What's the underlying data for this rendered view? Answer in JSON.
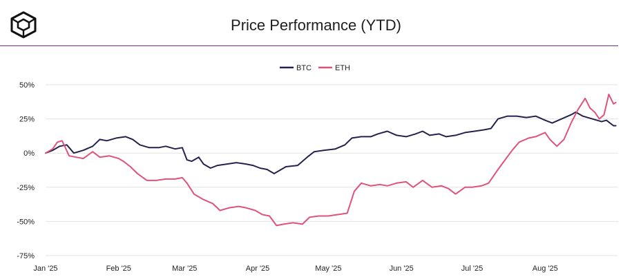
{
  "header": {
    "logo_icon": "cube-logo-icon",
    "title": "Price Performance (YTD)"
  },
  "colors": {
    "btc": "#23214f",
    "eth": "#e0527a",
    "grid": "#e3e3e3",
    "rule": "#7b2e8e"
  },
  "chart_data": {
    "type": "line",
    "title": "Price Performance (YTD)",
    "xlabel": "",
    "ylabel": "",
    "ylim": [
      -75,
      50
    ],
    "yticks": [
      50,
      25,
      0,
      -25,
      -50,
      -75
    ],
    "ytick_labels": [
      "50%",
      "25%",
      "0%",
      "-25%",
      "-50%",
      "-75%"
    ],
    "xlim": [
      "2025-01-01",
      "2025-09-01"
    ],
    "xticks": [
      "2025-01-01",
      "2025-02-01",
      "2025-03-01",
      "2025-04-01",
      "2025-05-01",
      "2025-06-01",
      "2025-07-01",
      "2025-08-01"
    ],
    "xtick_labels": [
      "Jan '25",
      "Feb '25",
      "Mar '25",
      "Apr '25",
      "May '25",
      "Jun '25",
      "Jul '25",
      "Aug '25"
    ],
    "grid": true,
    "legend": "top-center",
    "series": [
      {
        "name": "BTC",
        "color": "#23214f",
        "points": [
          [
            "2025-01-01",
            0
          ],
          [
            "2025-01-04",
            2
          ],
          [
            "2025-01-07",
            5
          ],
          [
            "2025-01-10",
            6
          ],
          [
            "2025-01-13",
            0
          ],
          [
            "2025-01-17",
            2
          ],
          [
            "2025-01-21",
            5
          ],
          [
            "2025-01-24",
            10
          ],
          [
            "2025-01-27",
            9
          ],
          [
            "2025-01-31",
            11
          ],
          [
            "2025-02-04",
            12
          ],
          [
            "2025-02-07",
            10
          ],
          [
            "2025-02-10",
            6
          ],
          [
            "2025-02-14",
            4
          ],
          [
            "2025-02-18",
            4
          ],
          [
            "2025-02-21",
            5
          ],
          [
            "2025-02-25",
            3
          ],
          [
            "2025-02-28",
            4
          ],
          [
            "2025-03-02",
            -5
          ],
          [
            "2025-03-04",
            -6
          ],
          [
            "2025-03-07",
            -3
          ],
          [
            "2025-03-09",
            -8
          ],
          [
            "2025-03-12",
            -11
          ],
          [
            "2025-03-15",
            -9
          ],
          [
            "2025-03-19",
            -8
          ],
          [
            "2025-03-23",
            -7
          ],
          [
            "2025-03-27",
            -8
          ],
          [
            "2025-03-30",
            -9
          ],
          [
            "2025-04-02",
            -11
          ],
          [
            "2025-04-05",
            -12
          ],
          [
            "2025-04-08",
            -15
          ],
          [
            "2025-04-10",
            -13
          ],
          [
            "2025-04-13",
            -10
          ],
          [
            "2025-04-18",
            -9
          ],
          [
            "2025-04-22",
            -3
          ],
          [
            "2025-04-25",
            1
          ],
          [
            "2025-04-29",
            2
          ],
          [
            "2025-05-04",
            3
          ],
          [
            "2025-05-08",
            6
          ],
          [
            "2025-05-11",
            11
          ],
          [
            "2025-05-15",
            12
          ],
          [
            "2025-05-19",
            12
          ],
          [
            "2025-05-22",
            14
          ],
          [
            "2025-05-26",
            16
          ],
          [
            "2025-05-30",
            13
          ],
          [
            "2025-06-03",
            12
          ],
          [
            "2025-06-07",
            14
          ],
          [
            "2025-06-10",
            16
          ],
          [
            "2025-06-13",
            13
          ],
          [
            "2025-06-17",
            14
          ],
          [
            "2025-06-20",
            12
          ],
          [
            "2025-06-24",
            13
          ],
          [
            "2025-06-28",
            15
          ],
          [
            "2025-07-02",
            16
          ],
          [
            "2025-07-06",
            17
          ],
          [
            "2025-07-09",
            18
          ],
          [
            "2025-07-12",
            25
          ],
          [
            "2025-07-16",
            27
          ],
          [
            "2025-07-20",
            27
          ],
          [
            "2025-07-24",
            26
          ],
          [
            "2025-07-28",
            27
          ],
          [
            "2025-08-01",
            24
          ],
          [
            "2025-08-04",
            22
          ],
          [
            "2025-08-08",
            25
          ],
          [
            "2025-08-12",
            28
          ],
          [
            "2025-08-14",
            30
          ],
          [
            "2025-08-17",
            27
          ],
          [
            "2025-08-21",
            25
          ],
          [
            "2025-08-25",
            23
          ],
          [
            "2025-08-27",
            24
          ],
          [
            "2025-08-30",
            20
          ],
          [
            "2025-08-31",
            20
          ]
        ]
      },
      {
        "name": "ETH",
        "color": "#e0527a",
        "points": [
          [
            "2025-01-01",
            0
          ],
          [
            "2025-01-04",
            3
          ],
          [
            "2025-01-06",
            8
          ],
          [
            "2025-01-08",
            9
          ],
          [
            "2025-01-11",
            -2
          ],
          [
            "2025-01-14",
            -3
          ],
          [
            "2025-01-17",
            -4
          ],
          [
            "2025-01-21",
            1
          ],
          [
            "2025-01-24",
            -3
          ],
          [
            "2025-01-28",
            -2
          ],
          [
            "2025-02-01",
            -4
          ],
          [
            "2025-02-03",
            -6
          ],
          [
            "2025-02-06",
            -10
          ],
          [
            "2025-02-09",
            -15
          ],
          [
            "2025-02-13",
            -20
          ],
          [
            "2025-02-17",
            -20
          ],
          [
            "2025-02-21",
            -19
          ],
          [
            "2025-02-25",
            -19
          ],
          [
            "2025-02-28",
            -18
          ],
          [
            "2025-03-02",
            -22
          ],
          [
            "2025-03-05",
            -30
          ],
          [
            "2025-03-09",
            -34
          ],
          [
            "2025-03-13",
            -37
          ],
          [
            "2025-03-16",
            -42
          ],
          [
            "2025-03-20",
            -40
          ],
          [
            "2025-03-24",
            -39
          ],
          [
            "2025-03-27",
            -40
          ],
          [
            "2025-03-31",
            -42
          ],
          [
            "2025-04-03",
            -45
          ],
          [
            "2025-04-06",
            -46
          ],
          [
            "2025-04-09",
            -53
          ],
          [
            "2025-04-12",
            -52
          ],
          [
            "2025-04-16",
            -51
          ],
          [
            "2025-04-20",
            -52
          ],
          [
            "2025-04-23",
            -47
          ],
          [
            "2025-04-27",
            -46
          ],
          [
            "2025-05-01",
            -46
          ],
          [
            "2025-05-05",
            -45
          ],
          [
            "2025-05-09",
            -44
          ],
          [
            "2025-05-12",
            -28
          ],
          [
            "2025-05-15",
            -22
          ],
          [
            "2025-05-19",
            -24
          ],
          [
            "2025-05-23",
            -23
          ],
          [
            "2025-05-26",
            -24
          ],
          [
            "2025-05-30",
            -22
          ],
          [
            "2025-06-03",
            -21
          ],
          [
            "2025-06-06",
            -25
          ],
          [
            "2025-06-10",
            -20
          ],
          [
            "2025-06-14",
            -25
          ],
          [
            "2025-06-18",
            -24
          ],
          [
            "2025-06-21",
            -26
          ],
          [
            "2025-06-24",
            -30
          ],
          [
            "2025-06-28",
            -25
          ],
          [
            "2025-07-01",
            -25
          ],
          [
            "2025-07-05",
            -24
          ],
          [
            "2025-07-08",
            -22
          ],
          [
            "2025-07-12",
            -12
          ],
          [
            "2025-07-15",
            -5
          ],
          [
            "2025-07-18",
            2
          ],
          [
            "2025-07-21",
            8
          ],
          [
            "2025-07-25",
            11
          ],
          [
            "2025-07-28",
            12
          ],
          [
            "2025-08-01",
            15
          ],
          [
            "2025-08-03",
            10
          ],
          [
            "2025-08-06",
            5
          ],
          [
            "2025-08-09",
            10
          ],
          [
            "2025-08-12",
            22
          ],
          [
            "2025-08-15",
            32
          ],
          [
            "2025-08-18",
            40
          ],
          [
            "2025-08-20",
            33
          ],
          [
            "2025-08-22",
            30
          ],
          [
            "2025-08-24",
            25
          ],
          [
            "2025-08-26",
            28
          ],
          [
            "2025-08-28",
            43
          ],
          [
            "2025-08-30",
            36
          ],
          [
            "2025-08-31",
            37
          ]
        ]
      }
    ]
  }
}
